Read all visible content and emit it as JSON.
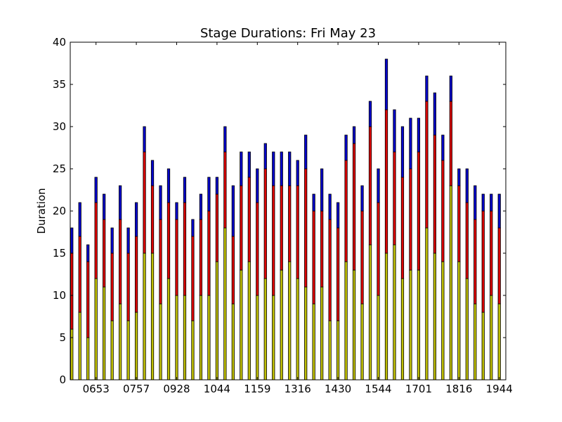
{
  "chart_data": {
    "type": "bar",
    "stacked": true,
    "title": "Stage Durations: Fri May 23",
    "xlabel": "",
    "ylabel": "Duration",
    "ylim": [
      0,
      40
    ],
    "yticks": [
      0,
      5,
      10,
      15,
      20,
      25,
      30,
      35,
      40
    ],
    "xtick_labels": [
      "0653",
      "0757",
      "0928",
      "1044",
      "1159",
      "1316",
      "1430",
      "1544",
      "1701",
      "1816",
      "1944"
    ],
    "grid": false,
    "legend": "none",
    "series": [
      {
        "color": "#bfbf00",
        "values": [
          6,
          8,
          5,
          12,
          11,
          7,
          9,
          7,
          8,
          15,
          15,
          9,
          12,
          10,
          10,
          7,
          10,
          10,
          14,
          18,
          9,
          13,
          14,
          10,
          12,
          10,
          13,
          14,
          12,
          11,
          9,
          11,
          7,
          7,
          14,
          13,
          9,
          16,
          10,
          15,
          16,
          12,
          13,
          13,
          18,
          15,
          14,
          23,
          14,
          12,
          9,
          8,
          10,
          9
        ]
      },
      {
        "color": "#dd0000",
        "values": [
          9,
          9,
          9,
          9,
          8,
          8,
          10,
          8,
          9,
          12,
          8,
          10,
          9,
          9,
          11,
          10,
          9,
          10,
          8,
          9,
          8,
          10,
          10,
          11,
          13,
          13,
          10,
          9,
          11,
          14,
          11,
          9,
          12,
          11,
          12,
          15,
          11,
          14,
          11,
          17,
          11,
          12,
          12,
          14,
          15,
          14,
          12,
          10,
          9,
          9,
          10,
          12,
          10,
          9
        ]
      },
      {
        "color": "#0000cc",
        "values": [
          3,
          4,
          2,
          3,
          3,
          3,
          4,
          3,
          4,
          3,
          3,
          4,
          4,
          2,
          3,
          2,
          3,
          4,
          2,
          3,
          6,
          4,
          3,
          4,
          3,
          4,
          4,
          4,
          3,
          4,
          2,
          5,
          3,
          3,
          3,
          2,
          3,
          3,
          4,
          6,
          5,
          6,
          6,
          4,
          3,
          5,
          3,
          3,
          2,
          4,
          4,
          2,
          2,
          4
        ]
      }
    ]
  }
}
